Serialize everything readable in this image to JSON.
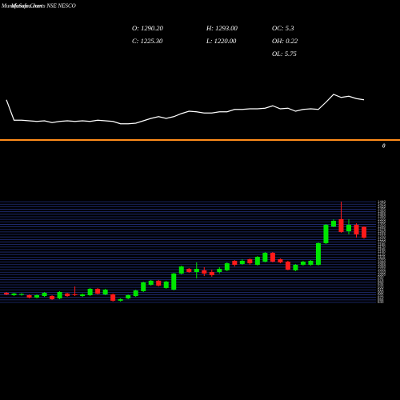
{
  "header": {
    "brand": "MunafaSutra.com",
    "title": "Munafa Charts NSE NESCO"
  },
  "stats": [
    "O: 1290.20",
    "H: 1293.00",
    "OC: 5.3",
    "C: 1225.30",
    "L: 1220.00",
    "OH: 0.22",
    "OL: 5.75"
  ],
  "chart_data": [
    {
      "type": "line",
      "color": "#ffffff",
      "zero_color": "#ff8c1a",
      "values": [
        67,
        33,
        33,
        32,
        31,
        32,
        29,
        31,
        32,
        31,
        32,
        31,
        33,
        32,
        31,
        27,
        27,
        28,
        32,
        36,
        39,
        36,
        39,
        44,
        48,
        47,
        45,
        45,
        47,
        47,
        51,
        51,
        52,
        52,
        53,
        57,
        52,
        53,
        48,
        51,
        52,
        51,
        63,
        76,
        71,
        73,
        69,
        67
      ],
      "ylim": [
        0,
        100
      ],
      "yticks": [
        0
      ]
    },
    {
      "type": "candlestick",
      "up_color": "#00e600",
      "down_color": "#ff1a1a",
      "grid_color": "#22307e",
      "grid": true,
      "open": [
        897,
        883,
        885,
        883,
        869,
        878,
        878,
        864,
        893,
        888,
        878,
        883,
        921,
        888,
        888,
        850,
        864,
        878,
        907,
        945,
        969,
        926,
        916,
        1012,
        1040,
        1021,
        1031,
        1021,
        1021,
        1031,
        1088,
        1069,
        1097,
        1064,
        1083,
        1135,
        1097,
        1083,
        1031,
        1064,
        1064,
        1064,
        1193,
        1292,
        1336,
        1264,
        1302,
        1290.2
      ],
      "high": [
        902,
        897,
        895,
        888,
        888,
        902,
        883,
        907,
        897,
        935,
        893,
        926,
        926,
        921,
        893,
        864,
        888,
        916,
        964,
        974,
        974,
        969,
        1016,
        1059,
        1045,
        1078,
        1050,
        1035,
        1050,
        1078,
        1092,
        1097,
        1102,
        1116,
        1140,
        1140,
        1102,
        1088,
        1069,
        1088,
        1092,
        1197,
        1307,
        1335,
        1440,
        1335,
        1311,
        1293
      ],
      "low": [
        883,
        878,
        880,
        864,
        864,
        873,
        854,
        859,
        873,
        878,
        873,
        878,
        888,
        883,
        845,
        845,
        859,
        873,
        902,
        940,
        935,
        921,
        911,
        1007,
        1016,
        983,
        997,
        993,
        1012,
        1026,
        1054,
        1064,
        1064,
        1059,
        1078,
        1078,
        1073,
        1031,
        1026,
        1059,
        1059,
        1059,
        1188,
        1288,
        1255,
        1245,
        1226,
        1220
      ],
      "close": [
        888,
        893,
        890,
        869,
        883,
        897,
        859,
        902,
        878,
        883,
        888,
        921,
        892,
        916,
        850,
        859,
        883,
        911,
        959,
        969,
        940,
        964,
        1012,
        1054,
        1021,
        1040,
        1012,
        1002,
        1040,
        1073,
        1064,
        1088,
        1073,
        1111,
        1135,
        1083,
        1078,
        1035,
        1064,
        1083,
        1088,
        1193,
        1302,
        1326,
        1259,
        1302,
        1245,
        1225.3
      ],
      "ylim": [
        840,
        1450
      ],
      "yticks": [
        840,
        855,
        870,
        885,
        900,
        915,
        930,
        945,
        960,
        975,
        990,
        1005,
        1020,
        1035,
        1050,
        1065,
        1080,
        1095,
        1110,
        1125,
        1140,
        1155,
        1170,
        1185,
        1200,
        1215,
        1230,
        1245,
        1260,
        1275,
        1290,
        1305,
        1320,
        1335,
        1350,
        1365,
        1380,
        1395,
        1410,
        1425,
        1440
      ]
    }
  ]
}
